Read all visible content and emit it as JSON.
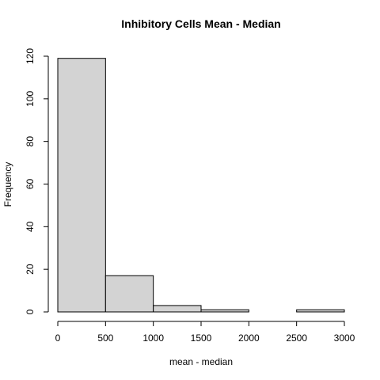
{
  "chart_data": {
    "type": "bar",
    "title": "Inhibitory Cells Mean - Median",
    "xlabel": "mean - median",
    "ylabel": "Frequency",
    "bins": [
      {
        "start": 0,
        "end": 500,
        "count": 119
      },
      {
        "start": 500,
        "end": 1000,
        "count": 17
      },
      {
        "start": 1000,
        "end": 1500,
        "count": 3
      },
      {
        "start": 1500,
        "end": 2000,
        "count": 1
      },
      {
        "start": 2000,
        "end": 2500,
        "count": 0
      },
      {
        "start": 2500,
        "end": 3000,
        "count": 1
      }
    ],
    "xlim": [
      0,
      3000
    ],
    "ylim": [
      0,
      120
    ],
    "xticks": [
      0,
      500,
      1000,
      1500,
      2000,
      2500,
      3000
    ],
    "yticks": [
      0,
      20,
      40,
      60,
      80,
      100,
      120
    ],
    "xtick_labels": [
      "0",
      "500",
      "1000",
      "1500",
      "2000",
      "2500",
      "3000"
    ],
    "ytick_labels": [
      "0",
      "20",
      "40",
      "60",
      "80",
      "100",
      "120"
    ],
    "bar_fill": "#d3d3d3",
    "bar_stroke": "#000000",
    "grid": false,
    "legend": "none"
  }
}
